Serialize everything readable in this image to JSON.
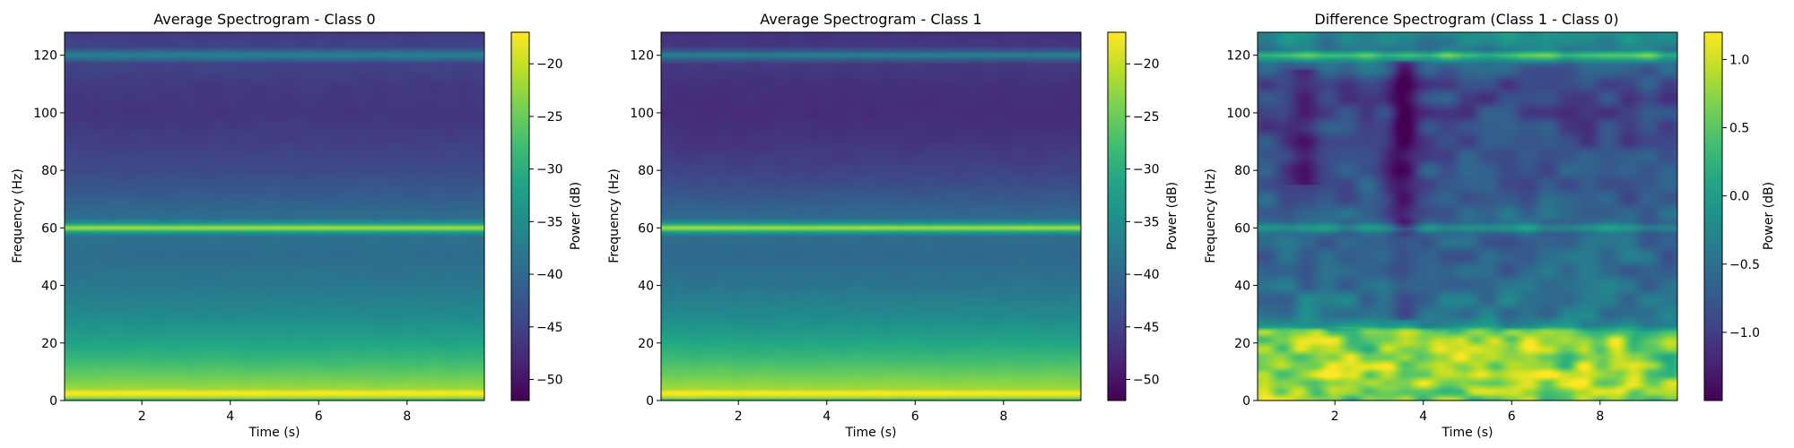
{
  "chart_data": [
    {
      "type": "heatmap",
      "title": "Average Spectrogram - Class 0",
      "xlabel": "Time (s)",
      "ylabel": "Frequency (Hz)",
      "xlim": [
        0.25,
        9.75
      ],
      "ylim": [
        0,
        128
      ],
      "xticks": [
        2,
        4,
        6,
        8
      ],
      "yticks": [
        0,
        20,
        40,
        60,
        80,
        100,
        120
      ],
      "colormap": "viridis",
      "colorbar": {
        "label": "Power (dB)",
        "range": [
          -52,
          -17
        ],
        "ticks": [
          -20,
          -25,
          -30,
          -35,
          -40,
          -45,
          -50
        ],
        "tick_labels": [
          "−20",
          "−25",
          "−30",
          "−35",
          "−40",
          "−45",
          "−50"
        ]
      },
      "frequency_profile_db": [
        [
          0,
          -30
        ],
        [
          1,
          -22
        ],
        [
          2,
          -17.5
        ],
        [
          3,
          -17.5
        ],
        [
          4,
          -22
        ],
        [
          6,
          -23.5
        ],
        [
          10,
          -26
        ],
        [
          15,
          -29
        ],
        [
          20,
          -31.5
        ],
        [
          25,
          -33.5
        ],
        [
          30,
          -35.5
        ],
        [
          40,
          -38
        ],
        [
          50,
          -39.5
        ],
        [
          57,
          -39
        ],
        [
          58.5,
          -33
        ],
        [
          60,
          -20
        ],
        [
          61.5,
          -33
        ],
        [
          63,
          -39
        ],
        [
          70,
          -41.5
        ],
        [
          80,
          -44
        ],
        [
          90,
          -45.5
        ],
        [
          100,
          -46.5
        ],
        [
          110,
          -46
        ],
        [
          117,
          -45
        ],
        [
          118.5,
          -41
        ],
        [
          120,
          -36
        ],
        [
          121.5,
          -41
        ],
        [
          123,
          -45
        ],
        [
          128,
          -46
        ]
      ]
    },
    {
      "type": "heatmap",
      "title": "Average Spectrogram - Class 1",
      "xlabel": "Time (s)",
      "ylabel": "Frequency (Hz)",
      "xlim": [
        0.25,
        9.75
      ],
      "ylim": [
        0,
        128
      ],
      "xticks": [
        2,
        4,
        6,
        8
      ],
      "yticks": [
        0,
        20,
        40,
        60,
        80,
        100,
        120
      ],
      "colormap": "viridis",
      "colorbar": {
        "label": "Power (dB)",
        "range": [
          -52,
          -17
        ],
        "ticks": [
          -20,
          -25,
          -30,
          -35,
          -40,
          -45,
          -50
        ],
        "tick_labels": [
          "−20",
          "−25",
          "−30",
          "−35",
          "−40",
          "−45",
          "−50"
        ]
      },
      "frequency_profile_db": [
        [
          0,
          -30
        ],
        [
          1,
          -22
        ],
        [
          2,
          -17.5
        ],
        [
          3,
          -17.5
        ],
        [
          4,
          -22
        ],
        [
          6,
          -23
        ],
        [
          10,
          -25.5
        ],
        [
          15,
          -28.5
        ],
        [
          20,
          -31
        ],
        [
          25,
          -33.5
        ],
        [
          30,
          -35.5
        ],
        [
          40,
          -38.5
        ],
        [
          50,
          -40
        ],
        [
          57,
          -39.5
        ],
        [
          58.5,
          -33
        ],
        [
          60,
          -20
        ],
        [
          61.5,
          -33
        ],
        [
          63,
          -39.5
        ],
        [
          70,
          -42
        ],
        [
          80,
          -45
        ],
        [
          90,
          -46.5
        ],
        [
          100,
          -47.5
        ],
        [
          110,
          -47
        ],
        [
          117,
          -46
        ],
        [
          118.5,
          -42
        ],
        [
          120,
          -36.5
        ],
        [
          121.5,
          -42
        ],
        [
          123,
          -46
        ],
        [
          128,
          -47
        ]
      ]
    },
    {
      "type": "heatmap",
      "title": "Difference Spectrogram (Class 1 - Class 0)",
      "xlabel": "Time (s)",
      "ylabel": "Frequency (Hz)",
      "xlim": [
        0.25,
        9.75
      ],
      "ylim": [
        0,
        128
      ],
      "xticks": [
        2,
        4,
        6,
        8
      ],
      "yticks": [
        0,
        20,
        40,
        60,
        80,
        100,
        120
      ],
      "colormap": "viridis",
      "colorbar": {
        "label": "Power (dB)",
        "range": [
          -1.5,
          1.2
        ],
        "ticks": [
          1.0,
          0.5,
          0.0,
          -0.5,
          -1.0
        ],
        "tick_labels": [
          "1.0",
          "0.5",
          "0.0",
          "−0.5",
          "−1.0"
        ]
      },
      "frequency_profile_db": [
        [
          0,
          0.6
        ],
        [
          5,
          0.75
        ],
        [
          10,
          0.7
        ],
        [
          20,
          0.7
        ],
        [
          24,
          0.5
        ],
        [
          26,
          -0.2
        ],
        [
          30,
          -0.4
        ],
        [
          40,
          -0.5
        ],
        [
          50,
          -0.6
        ],
        [
          58,
          -0.6
        ],
        [
          60,
          -0.1
        ],
        [
          62,
          -0.6
        ],
        [
          70,
          -0.7
        ],
        [
          80,
          -0.8
        ],
        [
          90,
          -0.85
        ],
        [
          100,
          -0.9
        ],
        [
          110,
          -0.85
        ],
        [
          117,
          -0.5
        ],
        [
          120,
          0.5
        ],
        [
          122,
          -0.4
        ],
        [
          128,
          -0.2
        ]
      ],
      "notable_features": [
        "dark vertical band near t = 3.5 s from 60 to 120 Hz (about -1.3 dB)",
        "bright low-frequency band 0-25 Hz (up to about 1.2 dB)",
        "bright horizontal line at 120 Hz"
      ]
    }
  ]
}
